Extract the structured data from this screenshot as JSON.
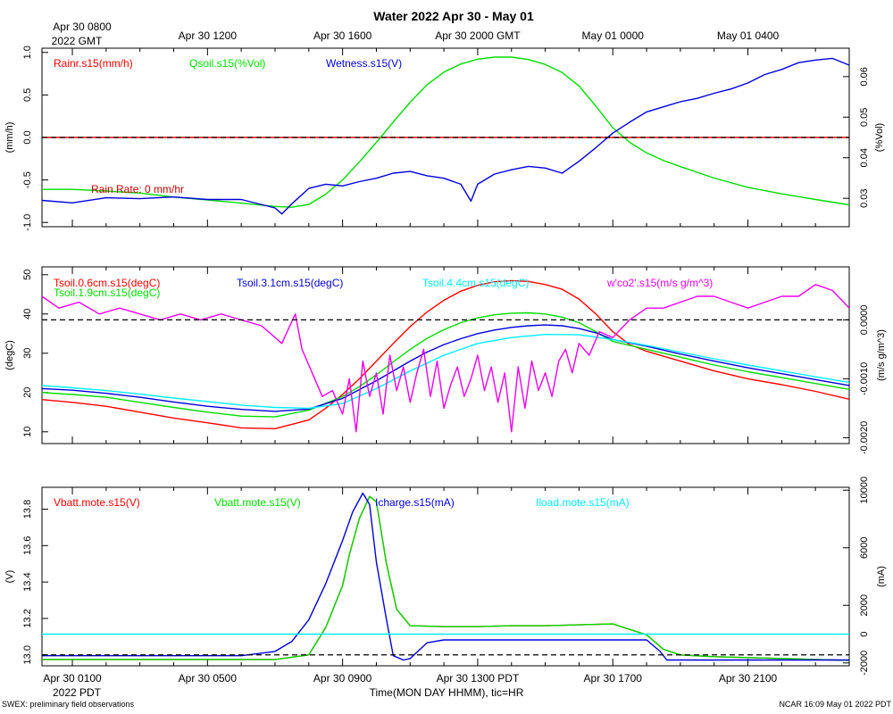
{
  "title": "Water 2022 Apr 30 - May 01",
  "gmt_corner": [
    "Apr 30 0800",
    "2022 GMT"
  ],
  "gmt_ticks": [
    {
      "hour": 12,
      "label": "Apr 30 1200"
    },
    {
      "hour": 16,
      "label": "Apr 30 1600"
    },
    {
      "hour": 20,
      "label": "Apr 30 2000 GMT"
    },
    {
      "hour": 24,
      "label": "May 01 0000"
    },
    {
      "hour": 28,
      "label": "May 01 0400"
    }
  ],
  "pdt_corner": "2022 PDT",
  "pdt_ticks": [
    {
      "hour": 8,
      "label": "Apr 30 0100"
    },
    {
      "hour": 12,
      "label": "Apr 30 0500"
    },
    {
      "hour": 16,
      "label": "Apr 30 09"
    },
    {
      "hour": 20,
      "label": "Apr 30 1300 PDT"
    },
    {
      "hour": 24,
      "label": "Apr 30 1700"
    },
    {
      "hour": 28,
      "label": "Apr 30 2100"
    }
  ],
  "pdt_tick_900": "00",
  "xlabel": "Time(MON DAY HHMM), tic=HR",
  "footer_left": "SWEX: preliminary field observations",
  "footer_right": "NCAR 16:09 May 01 2022 PDT",
  "chart_data": [
    {
      "id": "water",
      "type": "line",
      "x_units": "hours GMT from Apr 30 0000",
      "xlim": [
        7.1,
        31.0
      ],
      "left_axis": {
        "label": "(mm/h)",
        "ylim": [
          -1.05,
          1.05
        ],
        "ticks": [
          -1.0,
          -0.5,
          0.0,
          0.5,
          1.0
        ]
      },
      "right_axis": {
        "label": "(%Vol)",
        "ylim": [
          0.023,
          0.067
        ],
        "ticks": [
          0.03,
          0.04,
          0.05,
          0.06
        ]
      },
      "ref_line": 0.0,
      "annotation": "Rain Rate: 0 mm/hr",
      "series": [
        {
          "name": "Rainr.s15(mm/h)",
          "color": "#ff0000",
          "axis": "left",
          "x": [
            7.1,
            31.0
          ],
          "y": [
            0,
            0
          ]
        },
        {
          "name": "Qsoil.s15(%Vol)",
          "color": "#00dd00",
          "axis": "right",
          "x": [
            7.1,
            8,
            9,
            10,
            11,
            12,
            13,
            14,
            14.5,
            15,
            15.5,
            16,
            16.5,
            17,
            17.5,
            18,
            18.5,
            19,
            19.5,
            20,
            20.5,
            21,
            21.5,
            22,
            22.5,
            23,
            23.5,
            24,
            24.5,
            25,
            25.5,
            26,
            27,
            28,
            29,
            30,
            31
          ],
          "y": [
            0.0322,
            0.0322,
            0.0318,
            0.0313,
            0.0303,
            0.0296,
            0.0288,
            0.028,
            0.0278,
            0.0285,
            0.031,
            0.0345,
            0.039,
            0.0438,
            0.0488,
            0.0537,
            0.058,
            0.0611,
            0.0631,
            0.0643,
            0.0648,
            0.0648,
            0.0642,
            0.063,
            0.061,
            0.0577,
            0.0527,
            0.0474,
            0.0438,
            0.0412,
            0.0393,
            0.0378,
            0.035,
            0.0327,
            0.0311,
            0.0297,
            0.0284
          ]
        },
        {
          "name": "Wetness.s15(V)",
          "color": "#0000dd",
          "axis": "left",
          "x": [
            7.1,
            8,
            9,
            10,
            11,
            12,
            13,
            14,
            14.2,
            14.5,
            15,
            15.5,
            16,
            16.5,
            17,
            17.5,
            18,
            18.5,
            19,
            19.5,
            19.8,
            20,
            20.5,
            21,
            21.5,
            22,
            22.5,
            23,
            23.5,
            24,
            24.5,
            25,
            25.5,
            26,
            26.5,
            27,
            27.5,
            28,
            28.5,
            29,
            29.5,
            30,
            30.5,
            31
          ],
          "y": [
            -0.74,
            -0.77,
            -0.71,
            -0.72,
            -0.7,
            -0.73,
            -0.73,
            -0.83,
            -0.9,
            -0.78,
            -0.6,
            -0.55,
            -0.57,
            -0.52,
            -0.48,
            -0.42,
            -0.4,
            -0.45,
            -0.48,
            -0.55,
            -0.75,
            -0.55,
            -0.43,
            -0.38,
            -0.34,
            -0.36,
            -0.42,
            -0.28,
            -0.12,
            0.05,
            0.18,
            0.3,
            0.36,
            0.42,
            0.46,
            0.52,
            0.57,
            0.64,
            0.74,
            0.8,
            0.88,
            0.91,
            0.93,
            0.85
          ]
        }
      ]
    },
    {
      "id": "soil",
      "type": "line",
      "x_units": "hours GMT from Apr 30 0000",
      "xlim": [
        7.1,
        31.0
      ],
      "left_axis": {
        "label": "(degC)",
        "ylim": [
          7,
          52
        ],
        "ticks": [
          10,
          20,
          30,
          40,
          50
        ]
      },
      "right_axis": {
        "label": "(m/s g/m^3)",
        "ylim": [
          -0.0021,
          0.0009
        ],
        "ticks": [
          -0.002,
          -0.001,
          0.0
        ]
      },
      "ref_line_right": 0.0,
      "series": [
        {
          "name": "Tsoil.0.6cm.s15(degC)",
          "color": "#ff0000",
          "axis": "left",
          "x": [
            7.1,
            8,
            9,
            10,
            11,
            12,
            13,
            14,
            15,
            15.5,
            16,
            16.5,
            17,
            17.5,
            18,
            18.5,
            19,
            19.5,
            20,
            20.5,
            21,
            21.5,
            22,
            22.5,
            23,
            23.5,
            24,
            24.5,
            25,
            26,
            27,
            28,
            29,
            30,
            31
          ],
          "y": [
            18.2,
            17.5,
            16.5,
            15,
            13.5,
            12.3,
            11,
            10.8,
            13,
            16,
            19.5,
            23.5,
            28,
            32.5,
            36.8,
            40.5,
            43.5,
            45.8,
            47.3,
            48.2,
            48.5,
            48.3,
            47.5,
            46.3,
            43.8,
            40,
            35.5,
            32.2,
            30.5,
            28,
            25.5,
            23.5,
            22,
            20.3,
            18.3
          ]
        },
        {
          "name": "Tsoil.1.9cm.s15(degC)",
          "color": "#00dd00",
          "axis": "left",
          "x": [
            7.1,
            8,
            9,
            10,
            11,
            12,
            13,
            14,
            15,
            16,
            16.5,
            17,
            17.5,
            18,
            18.5,
            19,
            19.5,
            20,
            20.5,
            21,
            21.5,
            22,
            22.5,
            23,
            23.5,
            24,
            25,
            26,
            27,
            28,
            29,
            30,
            31
          ],
          "y": [
            20,
            19.5,
            18.8,
            17.5,
            16.2,
            15,
            14,
            13.8,
            15.5,
            19,
            21.5,
            24.5,
            27.8,
            31,
            33.8,
            36,
            37.8,
            39,
            39.8,
            40.2,
            40.3,
            40,
            39.2,
            37.8,
            35.5,
            33,
            31,
            29,
            27,
            25.3,
            23.8,
            22.3,
            20.8
          ]
        },
        {
          "name": "Tsoil.3.1cm.s15(degC)",
          "color": "#0000dd",
          "axis": "left",
          "x": [
            7.1,
            8,
            9,
            10,
            11,
            12,
            13,
            14,
            15,
            16,
            17,
            17.5,
            18,
            18.5,
            19,
            19.5,
            20,
            20.5,
            21,
            21.5,
            22,
            22.5,
            23,
            23.5,
            24,
            25,
            26,
            27,
            28,
            29,
            30,
            31
          ],
          "y": [
            21,
            20.6,
            19.8,
            18.8,
            17.6,
            16.5,
            15.7,
            15.2,
            15.8,
            18.5,
            23,
            25.5,
            28,
            30.3,
            32.2,
            33.7,
            35,
            35.9,
            36.6,
            37,
            37.2,
            37,
            36.3,
            35.2,
            33.5,
            31.8,
            29.8,
            28,
            26.3,
            24.8,
            23.3,
            21.8
          ]
        },
        {
          "name": "Tsoil.4.4cm.s15(degC)",
          "color": "#00eeff",
          "axis": "left",
          "x": [
            7.1,
            8,
            9,
            10,
            11,
            12,
            13,
            14,
            15,
            16,
            17,
            18,
            19,
            20,
            21,
            22,
            23,
            24,
            25,
            26,
            27,
            28,
            29,
            30,
            31
          ],
          "y": [
            21.8,
            21.2,
            20.5,
            19.6,
            18.6,
            17.7,
            16.8,
            16.2,
            16,
            17.2,
            21,
            25.5,
            29.5,
            32.5,
            34,
            34.8,
            34.7,
            33.5,
            32,
            30.3,
            28.6,
            27,
            25.5,
            24,
            22.6
          ]
        },
        {
          "name": "w'co2'.s15(m/s g/m^3)",
          "color": "#ee00ee",
          "axis": "right",
          "x": [
            7.1,
            7.6,
            8.2,
            8.8,
            9.4,
            10,
            10.6,
            11.2,
            11.8,
            12.4,
            13,
            13.6,
            14.2,
            14.6,
            14.8,
            15.1,
            15.4,
            15.7,
            16,
            16.2,
            16.4,
            16.6,
            16.8,
            17,
            17.2,
            17.4,
            17.6,
            17.8,
            18,
            18.2,
            18.4,
            18.6,
            18.8,
            19,
            19.2,
            19.4,
            19.6,
            19.8,
            20,
            20.2,
            20.4,
            20.6,
            20.8,
            21,
            21.2,
            21.4,
            21.6,
            21.8,
            22,
            22.2,
            22.4,
            22.6,
            22.8,
            23,
            23.3,
            23.6,
            24,
            24.5,
            25,
            25.5,
            26,
            26.5,
            27,
            27.5,
            28,
            28.5,
            29,
            29.5,
            30,
            30.5,
            31
          ],
          "y": [
            0.0004,
            0.0002,
            0.0003,
            0.0001,
            0.0002,
            0.0001,
            0.0,
            0.0001,
            0.0,
            0.0001,
            0.0,
            -0.0001,
            -0.0004,
            0.0001,
            -0.0005,
            -0.0009,
            -0.0013,
            -0.0012,
            -0.0016,
            -0.001,
            -0.0019,
            -0.0007,
            -0.0013,
            -0.0009,
            -0.0016,
            -0.0006,
            -0.0012,
            -0.0008,
            -0.0014,
            -0.0009,
            -0.0005,
            -0.0013,
            -0.0007,
            -0.0015,
            -0.0011,
            -0.0008,
            -0.0013,
            -0.001,
            -0.0006,
            -0.0012,
            -0.0008,
            -0.0014,
            -0.0009,
            -0.0019,
            -0.0008,
            -0.0015,
            -0.0007,
            -0.0012,
            -0.0009,
            -0.0013,
            -0.0007,
            -0.0005,
            -0.0009,
            -0.0004,
            -0.0006,
            -0.0002,
            -0.0003,
            0.0,
            0.0002,
            0.0002,
            0.0003,
            0.0004,
            0.0004,
            0.0003,
            0.0002,
            0.0003,
            0.0004,
            0.0004,
            0.0006,
            0.0005,
            0.0002
          ]
        }
      ]
    },
    {
      "id": "power",
      "type": "line",
      "x_units": "hours GMT from Apr 30 0000",
      "xlim": [
        7.1,
        31.0
      ],
      "left_axis": {
        "label": "(V)",
        "ylim": [
          12.94,
          13.92
        ],
        "ticks": [
          13.0,
          13.2,
          13.4,
          13.6,
          13.8
        ]
      },
      "right_axis": {
        "label": "(mA)",
        "ylim": [
          -2200,
          10200
        ],
        "ticks": [
          -2000,
          0,
          2000,
          6000,
          10000
        ]
      },
      "ref_line": 13.0,
      "series": [
        {
          "name": "Vbatt.mote.s15(V)",
          "color": "#ff0000",
          "axis": "left",
          "x": [
            7.1,
            13,
            14,
            15,
            15.5,
            16,
            16.2,
            16.5,
            16.8,
            17,
            17.3,
            17.6,
            18,
            19,
            20,
            21,
            22,
            23,
            24,
            25,
            25.5,
            26,
            27,
            28,
            29,
            30,
            31
          ],
          "y": [
            12.975,
            12.975,
            12.975,
            13.0,
            13.15,
            13.38,
            13.55,
            13.75,
            13.87,
            13.84,
            13.5,
            13.25,
            13.16,
            13.155,
            13.155,
            13.16,
            13.16,
            13.165,
            13.17,
            13.11,
            13.03,
            13.0,
            12.99,
            12.985,
            12.98,
            12.975,
            12.97
          ]
        },
        {
          "name": "Vbatt.mote.s15(V)",
          "color": "#00dd00",
          "axis": "left",
          "x": [
            7.1,
            13,
            14,
            15,
            15.5,
            16,
            16.2,
            16.5,
            16.8,
            17,
            17.3,
            17.6,
            18,
            19,
            20,
            21,
            22,
            23,
            24,
            25,
            25.5,
            26,
            27,
            28,
            29,
            30,
            31
          ],
          "y": [
            12.975,
            12.975,
            12.975,
            13.0,
            13.15,
            13.38,
            13.55,
            13.75,
            13.87,
            13.84,
            13.5,
            13.25,
            13.16,
            13.155,
            13.155,
            13.16,
            13.16,
            13.165,
            13.17,
            13.11,
            13.03,
            13.0,
            12.99,
            12.985,
            12.98,
            12.975,
            12.97
          ]
        },
        {
          "name": "Icharge.s15(mA)",
          "color": "#0000dd",
          "axis": "right",
          "x": [
            7.1,
            13,
            14,
            14.5,
            15,
            15.5,
            16,
            16.3,
            16.6,
            16.8,
            17,
            17.3,
            17.5,
            17.8,
            18,
            18.5,
            19,
            20,
            22,
            24,
            25,
            25.4,
            25.6,
            26,
            28,
            31
          ],
          "y": [
            -1500,
            -1500,
            -1200,
            -500,
            1000,
            3500,
            6500,
            8500,
            9800,
            9000,
            5000,
            1000,
            -1500,
            -1800,
            -1700,
            -600,
            -400,
            -400,
            -400,
            -400,
            -400,
            -1200,
            -1800,
            -1800,
            -1800,
            -1800
          ]
        },
        {
          "name": "Iload.mote.s15(mA)",
          "color": "#00eeff",
          "axis": "right",
          "x": [
            7.1,
            31.0
          ],
          "y": [
            0,
            0
          ]
        }
      ]
    }
  ]
}
